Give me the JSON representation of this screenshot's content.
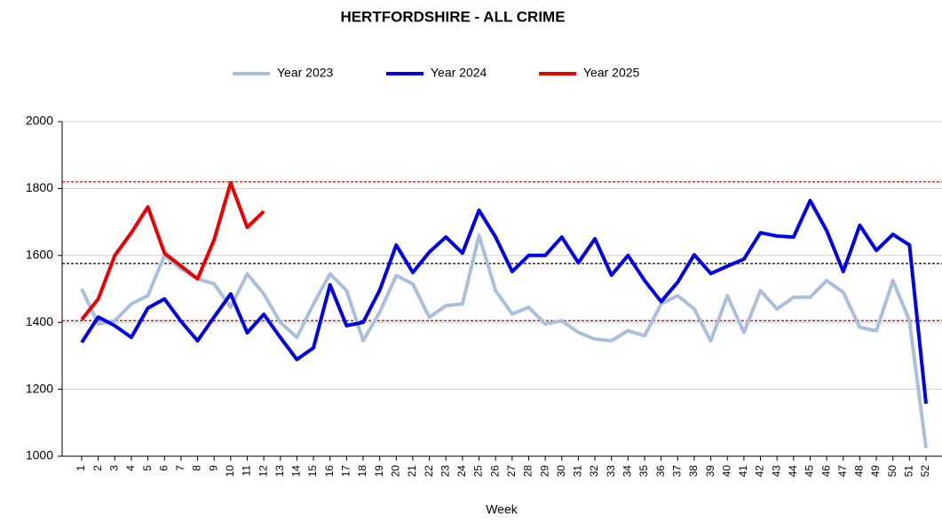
{
  "chart_data": {
    "type": "line",
    "title": "HERTFORDSHIRE - ALL CRIME",
    "x_label": "Week",
    "categories": [
      "1",
      "2",
      "3",
      "4",
      "5",
      "6",
      "7",
      "8",
      "9",
      "10",
      "11",
      "12",
      "13",
      "14",
      "15",
      "16",
      "17",
      "18",
      "19",
      "20",
      "21",
      "22",
      "23",
      "24",
      "25",
      "26",
      "27",
      "28",
      "29",
      "30",
      "31",
      "32",
      "33",
      "34",
      "35",
      "36",
      "37",
      "38",
      "39",
      "40",
      "41",
      "42",
      "43",
      "44",
      "45",
      "46",
      "47",
      "48",
      "49",
      "50",
      "51",
      "52"
    ],
    "series": [
      {
        "name": "Year 2023",
        "color": "#a9bfdc",
        "values": [
          1500,
          1395,
          1405,
          1455,
          1480,
          1600,
          1560,
          1530,
          1515,
          1445,
          1545,
          1485,
          1400,
          1355,
          1455,
          1545,
          1495,
          1345,
          1430,
          1540,
          1515,
          1415,
          1450,
          1455,
          1660,
          1495,
          1425,
          1445,
          1395,
          1405,
          1370,
          1350,
          1345,
          1375,
          1360,
          1455,
          1480,
          1440,
          1345,
          1480,
          1370,
          1495,
          1440,
          1475,
          1475,
          1525,
          1490,
          1385,
          1375,
          1525,
          1405,
          1025
        ]
      },
      {
        "name": "Year 2024",
        "color": "#0000ee",
        "values": [
          1340,
          1416,
          1390,
          1355,
          1443,
          1470,
          1403,
          1345,
          1416,
          1485,
          1369,
          1424,
          1355,
          1289,
          1324,
          1512,
          1390,
          1400,
          1496,
          1631,
          1549,
          1610,
          1655,
          1607,
          1735,
          1655,
          1552,
          1600,
          1600,
          1655,
          1578,
          1650,
          1541,
          1600,
          1525,
          1462,
          1520,
          1602,
          1546,
          1568,
          1589,
          1668,
          1658,
          1655,
          1764,
          1674,
          1552,
          1690,
          1615,
          1663,
          1631,
          1157
        ]
      },
      {
        "name": "Year 2025",
        "color": "#ee0000",
        "values": [
          1408,
          1470,
          1600,
          1668,
          1745,
          1607,
          1568,
          1530,
          1647,
          1817,
          1684,
          1732,
          null,
          null,
          null,
          null,
          null,
          null,
          null,
          null,
          null,
          null,
          null,
          null,
          null,
          null,
          null,
          null,
          null,
          null,
          null,
          null,
          null,
          null,
          null,
          null,
          null,
          null,
          null,
          null,
          null,
          null,
          null,
          null,
          null,
          null,
          null,
          null,
          null,
          null,
          null,
          null
        ]
      }
    ],
    "reference_lines": [
      {
        "value": 1820,
        "color": "#ee0000"
      },
      {
        "value": 1576,
        "color": "#000000"
      },
      {
        "value": 1405,
        "color": "#ee0000"
      }
    ],
    "ylim": [
      1000,
      2000
    ],
    "yticks": [
      1000,
      1200,
      1400,
      1600,
      1800,
      2000
    ],
    "grid": true
  }
}
